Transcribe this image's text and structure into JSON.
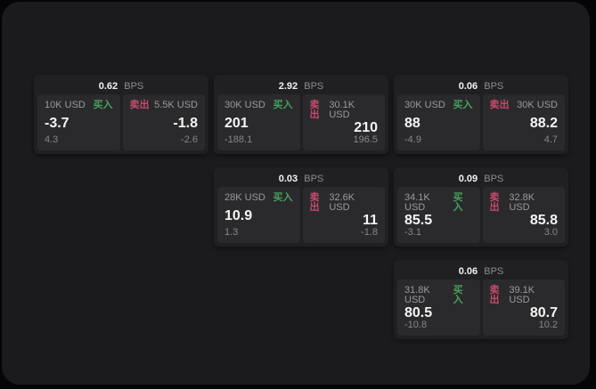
{
  "page": {
    "outer_bg": "#050505",
    "container_bg": "#1b1b1d"
  },
  "labels": {
    "bps_unit": "BPS",
    "buy": "买入",
    "sell": "卖出"
  },
  "colors": {
    "buy": "#47a15f",
    "sell": "#c84a6d",
    "card_bg": "#202022",
    "panel_bg": "#2a2a2c",
    "text_primary": "#f5f5f5",
    "text_muted": "#8d8d91"
  },
  "cards": [
    {
      "bps": "0.62",
      "row": 1,
      "col": 1,
      "buy": {
        "size": "10K USD",
        "price": "-3.7",
        "delta": "4.3"
      },
      "sell": {
        "size": "5.5K USD",
        "price": "-1.8",
        "delta": "-2.6"
      }
    },
    {
      "bps": "2.92",
      "row": 1,
      "col": 2,
      "buy": {
        "size": "30K USD",
        "price": "201",
        "delta": "-188.1"
      },
      "sell": {
        "size": "30.1K USD",
        "price": "210",
        "delta": "196.5"
      }
    },
    {
      "bps": "0.06",
      "row": 1,
      "col": 3,
      "buy": {
        "size": "30K USD",
        "price": "88",
        "delta": "-4.9"
      },
      "sell": {
        "size": "30K USD",
        "price": "88.2",
        "delta": "4.7"
      }
    },
    {
      "bps": "0.03",
      "row": 2,
      "col": 2,
      "buy": {
        "size": "28K USD",
        "price": "10.9",
        "delta": "1.3"
      },
      "sell": {
        "size": "32.6K USD",
        "price": "11",
        "delta": "-1.8"
      }
    },
    {
      "bps": "0.09",
      "row": 2,
      "col": 3,
      "buy": {
        "size": "34.1K USD",
        "price": "85.5",
        "delta": "-3.1"
      },
      "sell": {
        "size": "32.8K USD",
        "price": "85.8",
        "delta": "3.0"
      }
    },
    {
      "bps": "0.06",
      "row": 3,
      "col": 3,
      "buy": {
        "size": "31.8K USD",
        "price": "80.5",
        "delta": "-10.8"
      },
      "sell": {
        "size": "39.1K USD",
        "price": "80.7",
        "delta": "10.2"
      }
    }
  ]
}
